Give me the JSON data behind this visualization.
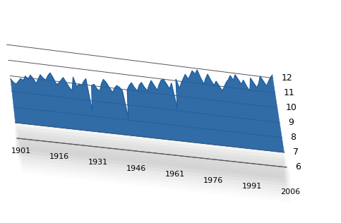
{
  "x_start": 1901,
  "x_end": 2006,
  "y_min": 6,
  "y_max": 12,
  "y_ticks": [
    6,
    7,
    8,
    9,
    10,
    11,
    12
  ],
  "x_tick_labels": [
    "1901",
    "1916",
    "1931",
    "1946",
    "1961",
    "1976",
    "1991",
    "2006"
  ],
  "x_tick_positions": [
    1901,
    1916,
    1931,
    1946,
    1961,
    1976,
    1991,
    2006
  ],
  "line_color": "#2060a0",
  "fill_color": "#2060a0",
  "shadow_color": "#aaaaaa",
  "background_color": "#ffffff",
  "grid_color": "#555555",
  "floor_baseline": 7.0,
  "values": [
    9.8,
    9.6,
    9.5,
    9.7,
    9.9,
    9.8,
    10.1,
    9.9,
    10.2,
    10.0,
    9.7,
    10.0,
    10.3,
    10.1,
    10.0,
    10.3,
    10.5,
    10.2,
    9.8,
    9.9,
    10.1,
    10.3,
    10.0,
    9.7,
    9.5,
    10.4,
    9.8,
    10.0,
    9.9,
    10.2,
    10.4,
    8.3,
    10.0,
    10.1,
    9.8,
    9.7,
    10.2,
    10.5,
    10.3,
    10.0,
    9.7,
    10.0,
    10.2,
    10.1,
    9.9,
    8.1,
    10.0,
    10.3,
    10.5,
    10.2,
    10.0,
    10.4,
    10.6,
    10.3,
    10.1,
    10.5,
    10.8,
    10.5,
    10.2,
    10.6,
    10.9,
    11.0,
    10.7,
    10.4,
    10.8,
    9.1,
    11.1,
    10.5,
    10.9,
    11.2,
    11.5,
    11.2,
    11.5,
    11.8,
    11.6,
    11.9,
    11.4,
    11.0,
    11.4,
    11.7,
    11.3,
    11.0,
    11.3,
    11.0,
    10.7,
    11.0,
    11.3,
    11.5,
    11.8,
    11.5,
    11.9,
    11.6,
    11.3,
    11.6,
    11.2,
    10.9,
    11.8,
    11.5,
    11.2,
    11.5,
    12.0,
    11.7,
    11.4,
    11.7,
    12.0,
    12.2
  ]
}
